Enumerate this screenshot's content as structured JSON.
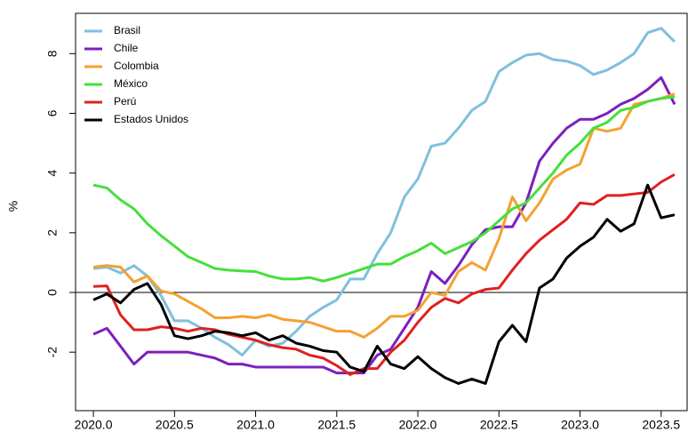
{
  "chart_data": {
    "type": "line",
    "ylabel": "%",
    "x": [
      2020,
      2020.083,
      2020.167,
      2020.25,
      2020.333,
      2020.417,
      2020.5,
      2020.583,
      2020.667,
      2020.75,
      2020.833,
      2020.917,
      2021,
      2021.083,
      2021.167,
      2021.25,
      2021.333,
      2021.417,
      2021.5,
      2021.583,
      2021.667,
      2021.75,
      2021.833,
      2021.917,
      2022,
      2022.083,
      2022.167,
      2022.25,
      2022.333,
      2022.417,
      2022.5,
      2022.583,
      2022.667,
      2022.75,
      2022.833,
      2022.917,
      2023,
      2023.083,
      2023.167,
      2023.25,
      2023.333,
      2023.417,
      2023.5,
      2023.583
    ],
    "series": [
      {
        "name": "Brasil",
        "color": "#7ec0de",
        "values": [
          0.8,
          0.85,
          0.65,
          0.9,
          0.55,
          -0.1,
          -0.95,
          -0.95,
          -1.2,
          -1.5,
          -1.75,
          -2.1,
          -1.6,
          -1.8,
          -1.7,
          -1.3,
          -0.8,
          -0.5,
          -0.25,
          0.45,
          0.45,
          1.3,
          2.0,
          3.2,
          3.8,
          4.9,
          5.0,
          5.5,
          6.1,
          6.4,
          7.4,
          7.7,
          7.95,
          8.0,
          7.8,
          7.75,
          7.6,
          7.3,
          7.45,
          7.7,
          8.0,
          8.7,
          8.85,
          8.4
        ]
      },
      {
        "name": "Chile",
        "color": "#7b1fbf",
        "values": [
          -1.4,
          -1.2,
          -1.8,
          -2.4,
          -2.0,
          -2.0,
          -2.0,
          -2.0,
          -2.1,
          -2.2,
          -2.4,
          -2.4,
          -2.5,
          -2.5,
          -2.5,
          -2.5,
          -2.5,
          -2.5,
          -2.7,
          -2.7,
          -2.7,
          -2.1,
          -1.9,
          -1.2,
          -0.5,
          0.7,
          0.3,
          0.9,
          1.6,
          2.1,
          2.2,
          2.2,
          3.0,
          4.4,
          5.0,
          5.5,
          5.8,
          5.8,
          6.0,
          6.3,
          6.5,
          6.8,
          7.2,
          6.3
        ]
      },
      {
        "name": "Colombia",
        "color": "#f5a031",
        "values": [
          0.85,
          0.9,
          0.85,
          0.35,
          0.55,
          0.05,
          -0.05,
          -0.3,
          -0.55,
          -0.85,
          -0.85,
          -0.8,
          -0.85,
          -0.75,
          -0.9,
          -0.95,
          -1.0,
          -1.15,
          -1.3,
          -1.3,
          -1.5,
          -1.2,
          -0.8,
          -0.8,
          -0.6,
          0.0,
          -0.1,
          0.7,
          1.0,
          0.75,
          1.8,
          3.2,
          2.4,
          3.0,
          3.8,
          4.1,
          4.3,
          5.5,
          5.4,
          5.5,
          6.3,
          6.4,
          6.5,
          6.65
        ]
      },
      {
        "name": "México",
        "color": "#44e03a",
        "values": [
          3.6,
          3.5,
          3.1,
          2.8,
          2.3,
          1.9,
          1.55,
          1.2,
          1.0,
          0.8,
          0.75,
          0.72,
          0.7,
          0.55,
          0.45,
          0.45,
          0.5,
          0.38,
          0.5,
          0.65,
          0.8,
          0.95,
          0.95,
          1.2,
          1.4,
          1.65,
          1.3,
          1.5,
          1.7,
          2.0,
          2.4,
          2.8,
          3.0,
          3.5,
          4.0,
          4.6,
          5.0,
          5.5,
          5.7,
          6.1,
          6.2,
          6.4,
          6.5,
          6.55
        ]
      },
      {
        "name": "Perú",
        "color": "#e0201f",
        "values": [
          0.2,
          0.22,
          -0.75,
          -1.25,
          -1.25,
          -1.15,
          -1.2,
          -1.3,
          -1.2,
          -1.25,
          -1.4,
          -1.5,
          -1.6,
          -1.75,
          -1.85,
          -1.9,
          -2.1,
          -2.2,
          -2.45,
          -2.75,
          -2.55,
          -2.55,
          -2.0,
          -1.6,
          -1.0,
          -0.5,
          -0.2,
          -0.35,
          -0.05,
          0.1,
          0.15,
          0.75,
          1.3,
          1.75,
          2.1,
          2.45,
          3.0,
          2.95,
          3.25,
          3.25,
          3.3,
          3.35,
          3.7,
          3.95
        ]
      },
      {
        "name": "Estados Unidos",
        "color": "#000000",
        "values": [
          -0.25,
          -0.05,
          -0.35,
          0.1,
          0.3,
          -0.4,
          -1.45,
          -1.55,
          -1.45,
          -1.3,
          -1.35,
          -1.45,
          -1.35,
          -1.6,
          -1.45,
          -1.7,
          -1.8,
          -1.95,
          -2.0,
          -2.5,
          -2.65,
          -1.8,
          -2.4,
          -2.55,
          -2.15,
          -2.55,
          -2.85,
          -3.05,
          -2.9,
          -3.05,
          -1.65,
          -1.1,
          -1.65,
          0.15,
          0.45,
          1.15,
          1.55,
          1.85,
          2.45,
          2.05,
          2.3,
          3.6,
          2.5,
          2.6
        ]
      }
    ],
    "xlim": [
      2019.89,
      2023.66
    ],
    "ylim": [
      -3.96,
      9.35
    ],
    "xticks": [
      {
        "value": 2020,
        "label": "2020.0"
      },
      2020.5,
      {
        "value": 2021,
        "label": "2021.0"
      },
      2021.5,
      {
        "value": 2022,
        "label": "2022.0"
      },
      2022.5,
      {
        "value": 2023,
        "label": "2023.0"
      },
      2023.5
    ],
    "yticks": [
      -2,
      0,
      2,
      4,
      6,
      8
    ],
    "hline": 0,
    "legend": "top-left"
  }
}
